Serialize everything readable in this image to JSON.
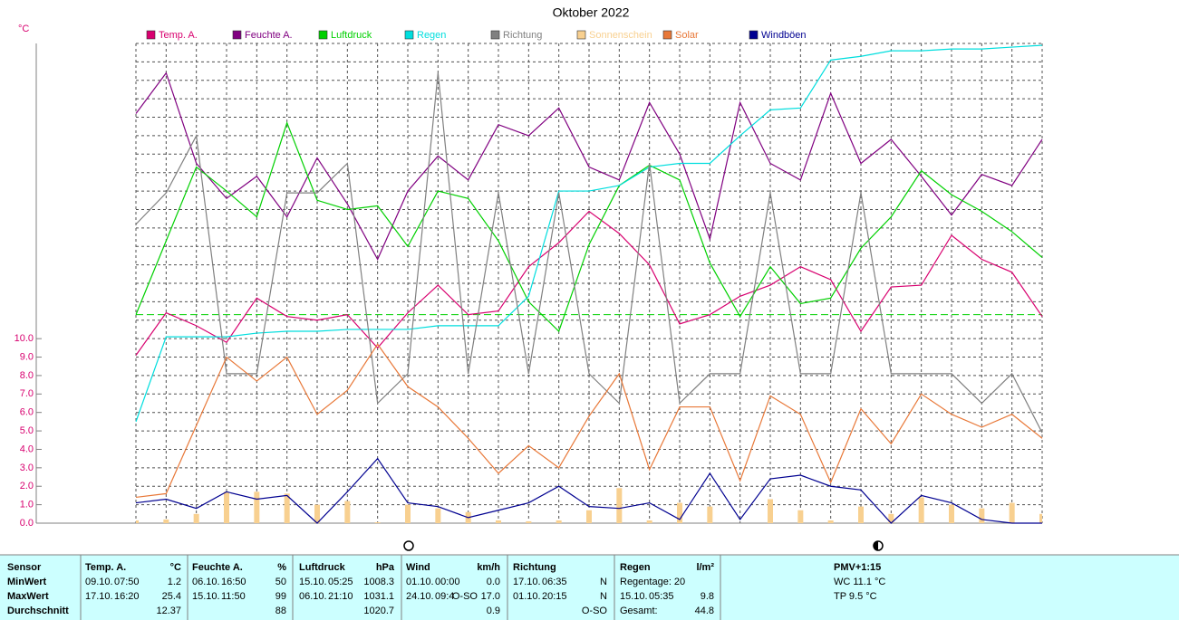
{
  "chart_data": {
    "type": "line",
    "title": "Oktober 2022",
    "y_unit": "°C",
    "categories": [
      null,
      null,
      null,
      null,
      null,
      null,
      null,
      null,
      null,
      null,
      null,
      null,
      null,
      null,
      null,
      null,
      null,
      null,
      null,
      null,
      null,
      null,
      null,
      null,
      null,
      null,
      null,
      null,
      null,
      null,
      null
    ],
    "ylim": [
      0,
      26
    ],
    "yticks": [
      {
        "value": 0,
        "label": "0.0"
      },
      {
        "value": 1,
        "label": "1.0"
      },
      {
        "value": 2,
        "label": "2.0"
      },
      {
        "value": 3,
        "label": "3.0"
      },
      {
        "value": 4,
        "label": "4.0"
      },
      {
        "value": 5,
        "label": "5.0"
      },
      {
        "value": 6,
        "label": "6.0"
      },
      {
        "value": 7,
        "label": "7.0"
      },
      {
        "value": 8,
        "label": "8.0"
      },
      {
        "value": 9,
        "label": "9.0"
      },
      {
        "value": 10,
        "label": "10.0"
      }
    ],
    "ygrid": [
      11,
      12,
      13,
      14,
      15,
      16,
      17,
      18,
      19,
      20,
      21,
      22,
      23,
      24,
      25,
      26
    ],
    "grid": true,
    "pressure_mean_line": {
      "value": 11.3,
      "color": "#00d000"
    },
    "series": [
      {
        "name": "Temp. A.",
        "color": "#d8006f",
        "kind": "line",
        "values": [
          9.1,
          11.4,
          10.7,
          9.8,
          12.2,
          11.2,
          11.0,
          11.3,
          9.5,
          11.4,
          12.9,
          11.3,
          11.5,
          13.9,
          15.2,
          16.9,
          15.7,
          14.0,
          10.8,
          11.3,
          12.3,
          12.9,
          13.9,
          13.2,
          10.4,
          12.8,
          12.9,
          15.6,
          14.3,
          13.6,
          11.2
        ]
      },
      {
        "name": "Feuchte A.",
        "color": "#800080",
        "kind": "line",
        "values": [
          22.2,
          24.4,
          19.5,
          17.6,
          18.8,
          16.6,
          19.8,
          17.3,
          14.3,
          18.0,
          19.9,
          18.6,
          21.6,
          21.0,
          22.5,
          19.3,
          18.6,
          22.8,
          20.0,
          15.4,
          22.8,
          19.5,
          18.6,
          23.3,
          19.5,
          20.8,
          18.8,
          16.7,
          18.9,
          18.3,
          20.8
        ]
      },
      {
        "name": "Luftdruck",
        "color": "#00d000",
        "kind": "line",
        "values": [
          11.3,
          15.3,
          19.3,
          18.0,
          16.6,
          21.7,
          17.5,
          17.0,
          17.2,
          15.0,
          18.0,
          17.6,
          15.3,
          12.0,
          10.4,
          15.1,
          18.3,
          19.4,
          18.6,
          14.1,
          11.2,
          13.9,
          11.9,
          12.2,
          14.9,
          16.6,
          19.1,
          17.8,
          16.9,
          15.8,
          14.4
        ]
      },
      {
        "name": "Regen",
        "color": "#00dede",
        "kind": "line",
        "values": [
          5.5,
          10.1,
          10.1,
          10.1,
          10.3,
          10.4,
          10.4,
          10.5,
          10.5,
          10.5,
          10.7,
          10.7,
          10.7,
          12.3,
          18.0,
          18.0,
          18.3,
          19.3,
          19.5,
          19.5,
          21.0,
          22.4,
          22.5,
          25.1,
          25.3,
          25.6,
          25.6,
          25.7,
          25.7,
          25.8,
          25.9
        ]
      },
      {
        "name": "Richtung",
        "color": "#808080",
        "kind": "line",
        "values": [
          16.2,
          17.9,
          21.0,
          8.1,
          8.1,
          17.9,
          17.9,
          19.5,
          6.5,
          8.1,
          24.4,
          8.1,
          17.9,
          8.1,
          17.9,
          8.1,
          6.5,
          19.5,
          6.5,
          8.1,
          8.1,
          17.9,
          8.1,
          8.1,
          17.9,
          8.1,
          8.1,
          8.1,
          6.5,
          8.1,
          4.9
        ]
      },
      {
        "name": "Sonnenschein",
        "color": "#f8d090",
        "kind": "bar",
        "values": [
          0.15,
          0.2,
          0.5,
          1.7,
          1.7,
          1.6,
          1.0,
          1.2,
          0.05,
          1.0,
          0.8,
          0.6,
          0.15,
          0.1,
          0.15,
          0.7,
          1.9,
          0.15,
          1.1,
          0.9,
          0,
          1.3,
          0.7,
          0.15,
          0.9,
          0.5,
          1.4,
          1.0,
          0.8,
          1.1,
          0.5
        ]
      },
      {
        "name": "Solar",
        "color": "#e87838",
        "kind": "line",
        "values": [
          1.4,
          1.6,
          5.3,
          9.0,
          7.7,
          9.0,
          5.9,
          7.2,
          9.7,
          7.4,
          6.3,
          4.6,
          2.7,
          4.2,
          3.0,
          5.8,
          8.1,
          2.9,
          6.3,
          6.3,
          2.3,
          6.9,
          5.9,
          2.2,
          6.2,
          4.3,
          7.0,
          5.9,
          5.2,
          5.9,
          4.6
        ]
      },
      {
        "name": "Windböen",
        "color": "#000090",
        "kind": "line",
        "values": [
          1.1,
          1.3,
          0.8,
          1.7,
          1.3,
          1.5,
          0.0,
          1.7,
          3.5,
          1.1,
          0.9,
          0.3,
          0.7,
          1.1,
          2.0,
          0.9,
          0.8,
          1.1,
          0.2,
          2.7,
          0.2,
          2.4,
          2.6,
          2.0,
          1.8,
          0.0,
          1.5,
          1.1,
          0.2,
          0.0,
          0.0
        ]
      }
    ]
  },
  "table": {
    "header": [
      {
        "label": "Sensor"
      },
      {
        "label": "Temp. A.",
        "unit": "°C"
      },
      {
        "label": "Feuchte A.",
        "unit": "%"
      },
      {
        "label": "Luftdruck",
        "unit": "hPa"
      },
      {
        "label": "Wind",
        "unit": "km/h"
      },
      {
        "label": "Richtung"
      },
      {
        "label": "Regen",
        "unit": "l/m²"
      },
      {
        "label": "PMV+1:15"
      }
    ],
    "rows": [
      {
        "label": "MinWert",
        "cells": [
          [
            "09.10.",
            "07:50",
            "1.2"
          ],
          [
            "06.10.",
            "16:50",
            "50"
          ],
          [
            "15.10.",
            "05:25",
            "1008.3"
          ],
          [
            "01.10.",
            "00:00",
            "0.0"
          ],
          [
            "17.10.",
            "06:35",
            "N"
          ],
          [
            "Regentage: 20"
          ],
          [
            "WC 11.1 °C"
          ]
        ]
      },
      {
        "label": "MaxWert",
        "cells": [
          [
            "17.10.",
            "16:20",
            "25.4"
          ],
          [
            "15.10.",
            "11:50",
            "99"
          ],
          [
            "06.10.",
            "21:10",
            "1031.1"
          ],
          [
            "24.10.",
            "09:4",
            "O-SO",
            "17.0"
          ],
          [
            "01.10.",
            "20:15",
            "N"
          ],
          [
            "15.10.",
            "05:35",
            "9.8"
          ],
          [
            "TP 9.5 °C"
          ]
        ]
      },
      {
        "label": "Durchschnitt",
        "cells": [
          [
            "12.37"
          ],
          [
            "88"
          ],
          [
            "1020.7"
          ],
          [
            "0.9"
          ],
          [
            "O-SO"
          ],
          [
            "Gesamt:",
            "44.8"
          ],
          []
        ]
      }
    ]
  }
}
